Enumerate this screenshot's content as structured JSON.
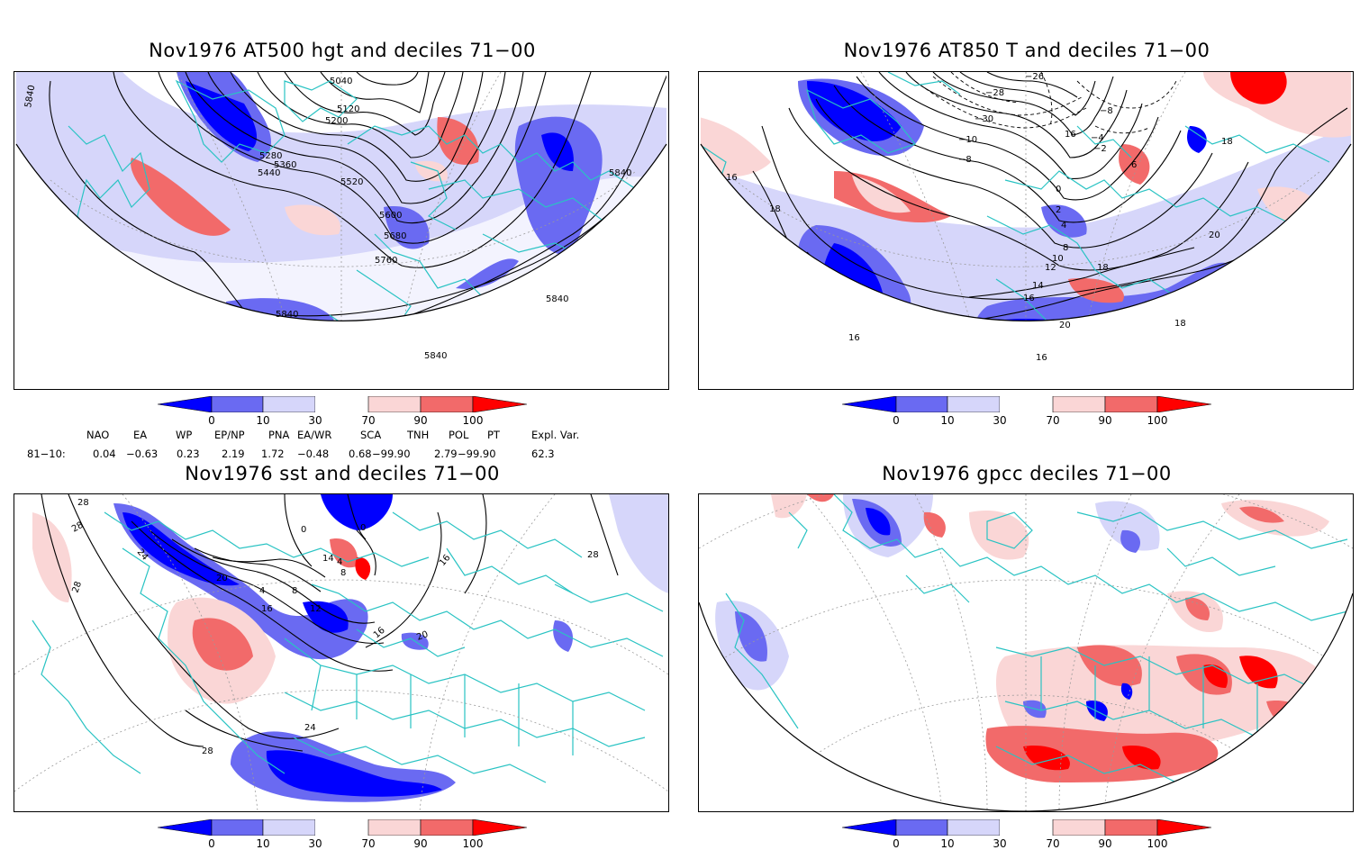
{
  "panels": [
    {
      "title": "Nov1976 AT500 hgt and deciles 71−00",
      "contour_labels": [
        "5840",
        "5040",
        "5120",
        "5200",
        "5280",
        "5360",
        "5440",
        "5520",
        "5600",
        "5680",
        "5760",
        "5840",
        "5840",
        "5840",
        "5840"
      ]
    },
    {
      "title": "Nov1976 AT850 T and deciles 71−00",
      "contour_labels": [
        "−26",
        "−28",
        "−30",
        "−10",
        "−8",
        "−4",
        "−2",
        "−8",
        "6",
        "16",
        "18",
        "16",
        "18",
        "0",
        "2",
        "4",
        "8",
        "10",
        "12",
        "14",
        "16",
        "18",
        "20",
        "20",
        "18",
        "16",
        "16"
      ]
    },
    {
      "title": "Nov1976 sst and deciles 71−00",
      "contour_labels": [
        "28",
        "28",
        "28",
        "24",
        "0",
        "0",
        "4",
        "8",
        "14",
        "16",
        "20",
        "4",
        "8",
        "12",
        "16",
        "16",
        "20",
        "24",
        "28",
        "28"
      ]
    },
    {
      "title": "Nov1976 gpcc deciles 71−00",
      "contour_labels": []
    }
  ],
  "colorbar": {
    "ticks": [
      "0",
      "10",
      "30",
      "70",
      "90",
      "100"
    ],
    "colors": {
      "c0": "#0000ff",
      "c1": "#6a6af2",
      "c2": "#d6d6fa",
      "c3": "#ffffff",
      "c4": "#fad6d6",
      "c5": "#f26a6a",
      "c6": "#ff0000"
    }
  },
  "indices": {
    "row_label": "81−10:",
    "headers": [
      "NAO",
      "EA",
      "WP",
      "EP/NP",
      "PNA",
      "EA/WR",
      "SCA",
      "TNH",
      "POL",
      "PT",
      "Expl. Var."
    ],
    "values": [
      "0.04",
      "−0.63",
      "0.23",
      "2.19",
      "1.72",
      "−0.48",
      "0.68",
      "−99.90",
      "2.79",
      "−99.90",
      "62.3"
    ]
  },
  "colors": {
    "coast": "#29c3c3",
    "contour": "#000000",
    "grid": "#9a9a9a"
  }
}
